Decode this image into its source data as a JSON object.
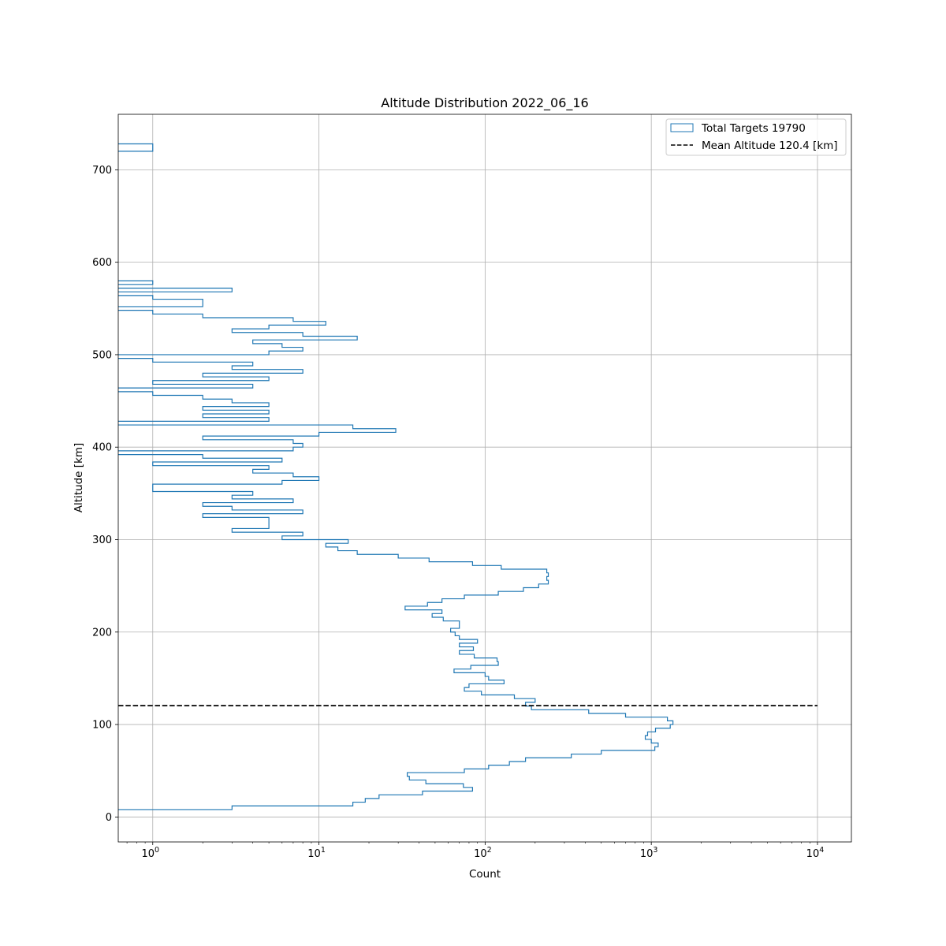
{
  "chart_data": {
    "type": "histogram",
    "orientation": "horizontal",
    "title": "Altitude Distribution 2022_06_16",
    "xlabel": "Count",
    "ylabel": "Altitude [km]",
    "x_scale": "log",
    "xlim": [
      0.62,
      16000
    ],
    "ylim": [
      -27,
      760
    ],
    "grid": true,
    "x_ticks": [
      {
        "base": "10",
        "exp": "0",
        "value": 1
      },
      {
        "base": "10",
        "exp": "1",
        "value": 10
      },
      {
        "base": "10",
        "exp": "2",
        "value": 100
      },
      {
        "base": "10",
        "exp": "3",
        "value": 1000
      },
      {
        "base": "10",
        "exp": "4",
        "value": 10000
      }
    ],
    "y_ticks": [
      0,
      100,
      200,
      300,
      400,
      500,
      600,
      700
    ],
    "legend_position": "top-right",
    "legend": [
      {
        "label": "Total Targets 19790",
        "kind": "histogram",
        "color": "#1f77b4"
      },
      {
        "label": "Mean Altitude 120.4 [km]",
        "kind": "dashed-line",
        "color": "#000000"
      }
    ],
    "mean_altitude": 120.4,
    "mean_line_x_range": [
      0.62,
      10000
    ],
    "bin_width": 4,
    "series": [
      {
        "name": "Total Targets 19790",
        "color": "#1f77b4",
        "bins": [
          [
            8,
            12,
            3
          ],
          [
            12,
            16,
            16
          ],
          [
            16,
            20,
            19
          ],
          [
            20,
            24,
            23
          ],
          [
            24,
            28,
            42
          ],
          [
            28,
            32,
            84
          ],
          [
            32,
            36,
            74
          ],
          [
            36,
            40,
            44
          ],
          [
            40,
            44,
            35
          ],
          [
            44,
            48,
            34
          ],
          [
            48,
            52,
            75
          ],
          [
            52,
            56,
            105
          ],
          [
            56,
            60,
            140
          ],
          [
            60,
            64,
            175
          ],
          [
            64,
            68,
            330
          ],
          [
            68,
            72,
            500
          ],
          [
            72,
            76,
            1050
          ],
          [
            76,
            80,
            1100
          ],
          [
            80,
            84,
            1000
          ],
          [
            84,
            88,
            920
          ],
          [
            88,
            92,
            950
          ],
          [
            92,
            96,
            1060
          ],
          [
            96,
            100,
            1300
          ],
          [
            100,
            104,
            1350
          ],
          [
            104,
            108,
            1250
          ],
          [
            108,
            112,
            700
          ],
          [
            112,
            116,
            420
          ],
          [
            116,
            120,
            190
          ],
          [
            120,
            124,
            175
          ],
          [
            124,
            128,
            200
          ],
          [
            128,
            132,
            150
          ],
          [
            132,
            136,
            95
          ],
          [
            136,
            140,
            75
          ],
          [
            140,
            144,
            80
          ],
          [
            144,
            148,
            130
          ],
          [
            148,
            152,
            105
          ],
          [
            152,
            156,
            100
          ],
          [
            156,
            160,
            65
          ],
          [
            160,
            164,
            82
          ],
          [
            164,
            168,
            120
          ],
          [
            168,
            172,
            118
          ],
          [
            172,
            176,
            86
          ],
          [
            176,
            180,
            70
          ],
          [
            180,
            184,
            85
          ],
          [
            184,
            188,
            70
          ],
          [
            188,
            192,
            90
          ],
          [
            192,
            196,
            70
          ],
          [
            196,
            200,
            66
          ],
          [
            200,
            204,
            62
          ],
          [
            204,
            208,
            70
          ],
          [
            208,
            212,
            70
          ],
          [
            212,
            216,
            56
          ],
          [
            216,
            220,
            48
          ],
          [
            220,
            224,
            55
          ],
          [
            224,
            228,
            33
          ],
          [
            228,
            232,
            45
          ],
          [
            232,
            236,
            55
          ],
          [
            236,
            240,
            75
          ],
          [
            240,
            244,
            120
          ],
          [
            244,
            248,
            170
          ],
          [
            248,
            252,
            210
          ],
          [
            252,
            256,
            240
          ],
          [
            256,
            260,
            235
          ],
          [
            260,
            264,
            240
          ],
          [
            264,
            268,
            235
          ],
          [
            268,
            272,
            125
          ],
          [
            272,
            276,
            84
          ],
          [
            276,
            280,
            46
          ],
          [
            280,
            284,
            30
          ],
          [
            284,
            288,
            17
          ],
          [
            288,
            292,
            13
          ],
          [
            292,
            296,
            11
          ],
          [
            296,
            300,
            15
          ],
          [
            300,
            304,
            6
          ],
          [
            304,
            308,
            8
          ],
          [
            308,
            312,
            3
          ],
          [
            312,
            316,
            5
          ],
          [
            316,
            320,
            5
          ],
          [
            320,
            324,
            5
          ],
          [
            324,
            328,
            2
          ],
          [
            328,
            332,
            8
          ],
          [
            332,
            336,
            3
          ],
          [
            336,
            340,
            2
          ],
          [
            340,
            344,
            7
          ],
          [
            344,
            348,
            3
          ],
          [
            348,
            352,
            4
          ],
          [
            352,
            356,
            1
          ],
          [
            356,
            360,
            1
          ],
          [
            360,
            364,
            6
          ],
          [
            364,
            368,
            10
          ],
          [
            368,
            372,
            7
          ],
          [
            372,
            376,
            4
          ],
          [
            376,
            380,
            5
          ],
          [
            380,
            384,
            1
          ],
          [
            384,
            388,
            6
          ],
          [
            388,
            392,
            2
          ],
          [
            392,
            396,
            0
          ],
          [
            396,
            400,
            7
          ],
          [
            400,
            404,
            8
          ],
          [
            404,
            408,
            7
          ],
          [
            408,
            412,
            2
          ],
          [
            412,
            416,
            10
          ],
          [
            416,
            420,
            29
          ],
          [
            420,
            424,
            16
          ],
          [
            424,
            428,
            0
          ],
          [
            428,
            432,
            5
          ],
          [
            432,
            436,
            2
          ],
          [
            436,
            440,
            5
          ],
          [
            440,
            444,
            2
          ],
          [
            444,
            448,
            5
          ],
          [
            448,
            452,
            3
          ],
          [
            452,
            456,
            2
          ],
          [
            456,
            460,
            1
          ],
          [
            460,
            464,
            0
          ],
          [
            464,
            468,
            4
          ],
          [
            468,
            472,
            1
          ],
          [
            472,
            476,
            5
          ],
          [
            476,
            480,
            2
          ],
          [
            480,
            484,
            8
          ],
          [
            484,
            488,
            3
          ],
          [
            488,
            492,
            4
          ],
          [
            492,
            496,
            1
          ],
          [
            496,
            500,
            0
          ],
          [
            500,
            504,
            5
          ],
          [
            504,
            508,
            8
          ],
          [
            508,
            512,
            6
          ],
          [
            512,
            516,
            4
          ],
          [
            516,
            520,
            17
          ],
          [
            520,
            524,
            8
          ],
          [
            524,
            528,
            3
          ],
          [
            528,
            532,
            5
          ],
          [
            532,
            536,
            11
          ],
          [
            536,
            540,
            7
          ],
          [
            540,
            544,
            2
          ],
          [
            544,
            548,
            1
          ],
          [
            548,
            552,
            0
          ],
          [
            552,
            556,
            2
          ],
          [
            556,
            560,
            2
          ],
          [
            560,
            564,
            1
          ],
          [
            564,
            568,
            0
          ],
          [
            568,
            572,
            3
          ],
          [
            572,
            576,
            0
          ],
          [
            576,
            580,
            1
          ],
          [
            720,
            724,
            1
          ],
          [
            724,
            728,
            1
          ]
        ]
      }
    ]
  }
}
